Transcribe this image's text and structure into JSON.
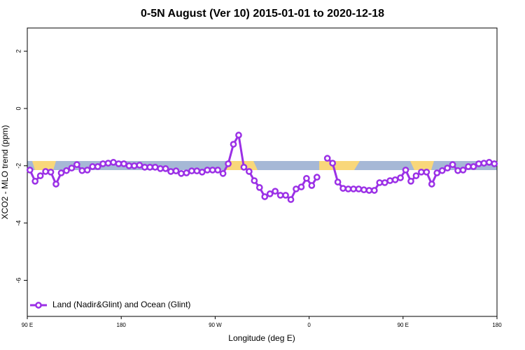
{
  "chart_data": {
    "type": "line",
    "title": "0-5N August (Ver 10)   2015-01-01 to 2020-12-18",
    "xlabel": "Longitude (deg E)",
    "ylabel": "XCO2 - MLO trend (ppm)",
    "xlim": [
      90,
      540
    ],
    "xticks": [
      {
        "value": 90,
        "label": "90 E"
      },
      180,
      {
        "value": 270,
        "label": "90 W"
      },
      {
        "value": 360,
        "label": "0"
      },
      {
        "value": 450,
        "label": "90 E"
      },
      {
        "value": 540,
        "label": "180"
      }
    ],
    "ylim": [
      -7.26,
      2.81
    ],
    "yticks": [
      -6,
      -4,
      -2,
      0,
      2
    ],
    "legend": "lower left",
    "x": [
      92.5,
      97.5,
      102.5,
      107.5,
      112.5,
      117.5,
      122.5,
      127.5,
      132.5,
      137.5,
      142.5,
      147.5,
      152.5,
      157.5,
      162.5,
      167.5,
      172.5,
      177.5,
      182.5,
      187.5,
      192.5,
      197.5,
      202.5,
      207.5,
      212.5,
      217.5,
      222.5,
      227.5,
      232.5,
      237.5,
      242.5,
      247.5,
      252.5,
      257.5,
      262.5,
      267.5,
      272.5,
      277.5,
      282.5,
      287.5,
      292.5,
      297.5,
      302.5,
      307.5,
      312.5,
      317.5,
      322.5,
      327.5,
      332.5,
      337.5,
      342.5,
      347.5,
      352.5,
      357.5,
      362.5,
      367.5,
      372.5,
      377.5,
      382.5,
      387.5,
      392.5,
      397.5,
      402.5,
      407.5,
      412.5,
      417.5,
      422.5,
      427.5,
      432.5,
      437.5,
      442.5,
      447.5,
      452.5,
      457.5,
      462.5,
      467.5,
      472.5,
      477.5,
      482.5,
      487.5,
      492.5,
      497.5,
      502.5,
      507.5,
      512.5,
      517.5,
      522.5,
      527.5,
      532.5,
      537.5
    ],
    "series": [
      {
        "name": "Land (Nadir&Glint) and Ocean (Glint)",
        "color": "#9b30e6",
        "values": [
          -2.15,
          -2.54,
          -2.35,
          -2.2,
          -2.22,
          -2.64,
          -2.25,
          -2.17,
          -2.08,
          -1.96,
          -2.17,
          -2.15,
          -2.03,
          -2.03,
          -1.93,
          -1.91,
          -1.88,
          -1.93,
          -1.93,
          -2.0,
          -2.0,
          -1.98,
          -2.05,
          -2.05,
          -2.05,
          -2.1,
          -2.1,
          -2.2,
          -2.18,
          -2.27,
          -2.25,
          -2.18,
          -2.18,
          -2.22,
          -2.15,
          -2.15,
          -2.15,
          -2.27,
          -1.93,
          -1.25,
          -0.93,
          -2.05,
          -2.2,
          -2.52,
          -2.76,
          -3.08,
          -2.98,
          -2.89,
          -3.03,
          -3.03,
          -3.18,
          -2.81,
          -2.74,
          -2.44,
          -2.69,
          -2.4,
          null,
          -1.74,
          -1.91,
          -2.57,
          -2.79,
          -2.81,
          -2.81,
          -2.81,
          -2.84,
          -2.86,
          -2.86,
          -2.59,
          -2.59,
          -2.52,
          -2.49,
          -2.42,
          -2.15,
          -2.54,
          -2.35,
          -2.22,
          -2.22,
          -2.64,
          -2.25,
          -2.17,
          -2.08,
          -1.96,
          -2.17,
          -2.15,
          -2.03,
          -2.03,
          -1.93,
          -1.91,
          -1.88,
          -1.93
        ]
      }
    ]
  }
}
